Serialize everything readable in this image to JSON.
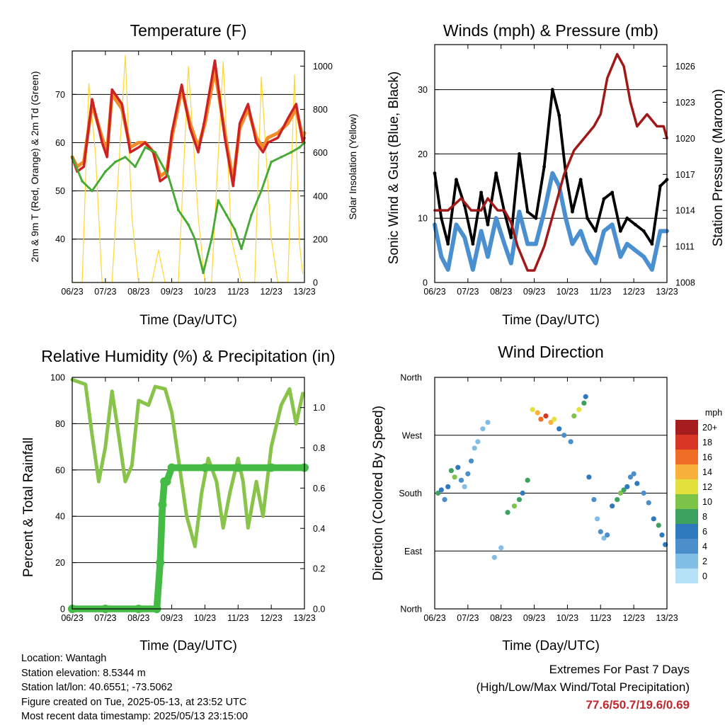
{
  "chart_data": [
    {
      "type": "line",
      "title": "Temperature (F)",
      "xlabel": "Time (Day/UTC)",
      "ylabel": "2m & 9m T (Red, Orange) & 2m Td (Green)",
      "ylabel_right": "Solar Insolation (Yellow)",
      "x_ticks": [
        "06/23",
        "07/23",
        "08/23",
        "09/23",
        "10/23",
        "11/23",
        "12/23",
        "13/23"
      ],
      "ylim": [
        31,
        79
      ],
      "y_ticks": [
        40,
        50,
        60,
        70
      ],
      "ylim_right": [
        0,
        1070
      ],
      "y_ticks_right": [
        0,
        200,
        400,
        600,
        800,
        1000
      ],
      "grid": "horizontal",
      "series": [
        {
          "color": "#cc2222",
          "x": [
            0,
            0.15,
            0.35,
            0.6,
            0.9,
            1.05,
            1.2,
            1.5,
            1.75,
            2.0,
            2.2,
            2.45,
            2.65,
            2.85,
            3.0,
            3.3,
            3.55,
            3.8,
            4.0,
            4.3,
            4.6,
            4.85,
            5.05,
            5.3,
            5.55,
            5.75,
            5.9,
            6.2,
            6.5,
            6.75,
            6.95,
            7.0
          ],
          "values": [
            57,
            54,
            55,
            69,
            60,
            57,
            71,
            68,
            58,
            59,
            60,
            58,
            52,
            53,
            62,
            72,
            63,
            58,
            65,
            77,
            61,
            51,
            64,
            68,
            60,
            58,
            60,
            61,
            65,
            68,
            60,
            61
          ]
        },
        {
          "color": "#f28c28",
          "x": [
            0,
            0.15,
            0.35,
            0.6,
            0.9,
            1.05,
            1.2,
            1.5,
            1.75,
            2.0,
            2.2,
            2.45,
            2.65,
            2.85,
            3.0,
            3.3,
            3.55,
            3.8,
            4.0,
            4.3,
            4.6,
            4.85,
            5.05,
            5.3,
            5.55,
            5.75,
            5.9,
            6.2,
            6.5,
            6.75,
            6.95,
            7.0
          ],
          "values": [
            57,
            55,
            56,
            68,
            61,
            58,
            70,
            67,
            59,
            60,
            60,
            58,
            53,
            54,
            61,
            71,
            64,
            59,
            64,
            75,
            62,
            52,
            63,
            67,
            61,
            59,
            61,
            62,
            64,
            67,
            61,
            62
          ]
        },
        {
          "color": "#44aa33",
          "x": [
            0,
            0.3,
            0.6,
            1.0,
            1.3,
            1.6,
            1.9,
            2.2,
            2.5,
            2.9,
            3.2,
            3.5,
            3.7,
            3.95,
            4.2,
            4.4,
            4.65,
            4.9,
            5.1,
            5.4,
            5.7,
            6.0,
            6.3,
            6.6,
            6.85,
            7.0
          ],
          "values": [
            57,
            52,
            50,
            54,
            56,
            57,
            55,
            59,
            58,
            53,
            46,
            43,
            40,
            33,
            40,
            48,
            45,
            42,
            38,
            45,
            50,
            56,
            57,
            58,
            59,
            60
          ]
        },
        {
          "color": "#ffd633",
          "x": [
            0,
            0.3,
            0.5,
            0.7,
            0.9,
            1.2,
            1.6,
            1.8,
            2.0,
            2.15,
            2.4,
            2.6,
            2.8,
            3.0,
            3.2,
            3.5,
            3.8,
            4.0,
            4.2,
            4.55,
            4.8,
            5.1,
            5.5,
            5.7,
            6.0,
            6.2,
            6.5,
            6.7,
            6.85,
            6.95
          ],
          "values": [
            0,
            0,
            920,
            600,
            0,
            0,
            1050,
            300,
            0,
            0,
            0,
            150,
            0,
            0,
            0,
            1000,
            300,
            0,
            0,
            1020,
            200,
            0,
            0,
            950,
            200,
            0,
            0,
            960,
            180,
            40
          ]
        }
      ]
    },
    {
      "type": "line",
      "title": "Winds (mph) & Pressure (mb)",
      "xlabel": "Time (Day/UTC)",
      "ylabel": "Sonic Wind & Gust (Blue, Black)",
      "ylabel_right": "Station Pressure (Maroon)",
      "x_ticks": [
        "06/23",
        "07/23",
        "08/23",
        "09/23",
        "10/23",
        "11/23",
        "12/23",
        "13/23"
      ],
      "ylim": [
        0,
        37
      ],
      "y_ticks": [
        0,
        10,
        20,
        30
      ],
      "ylim_right": [
        1008,
        1027.8
      ],
      "y_ticks_right": [
        1008,
        1011,
        1014,
        1017,
        1020,
        1023,
        1026
      ],
      "grid": "horizontal",
      "series": [
        {
          "color": "#000000",
          "x": [
            0,
            0.2,
            0.4,
            0.65,
            0.9,
            1.15,
            1.4,
            1.6,
            1.85,
            2.1,
            2.3,
            2.55,
            2.8,
            3.05,
            3.3,
            3.55,
            3.75,
            3.95,
            4.15,
            4.4,
            4.6,
            4.85,
            5.1,
            5.35,
            5.6,
            5.8,
            6.05,
            6.3,
            6.55,
            6.8,
            7.0
          ],
          "values": [
            17,
            10,
            6,
            16,
            12,
            6,
            14,
            9,
            17,
            11,
            7,
            20,
            11,
            10,
            18,
            30,
            26,
            17,
            11,
            16,
            10,
            8,
            13,
            14,
            8,
            10,
            9,
            8,
            6,
            15,
            16
          ]
        },
        {
          "color": "#4a90d0",
          "x": [
            0,
            0.2,
            0.4,
            0.65,
            0.9,
            1.15,
            1.4,
            1.6,
            1.85,
            2.1,
            2.3,
            2.55,
            2.8,
            3.05,
            3.3,
            3.55,
            3.75,
            3.95,
            4.15,
            4.4,
            4.6,
            4.85,
            5.1,
            5.35,
            5.6,
            5.8,
            6.05,
            6.3,
            6.55,
            6.8,
            7.0
          ],
          "values": [
            9,
            4,
            2,
            9,
            7,
            2,
            8,
            4,
            10,
            6,
            3,
            11,
            6,
            6,
            11,
            17,
            15,
            10,
            6,
            8,
            5,
            3,
            8,
            9,
            4,
            6,
            5,
            4,
            2,
            8,
            8
          ]
        },
        {
          "color": "#a01818",
          "x": [
            0,
            0.4,
            0.8,
            1.1,
            1.4,
            1.6,
            1.9,
            2.1,
            2.3,
            2.5,
            2.8,
            3.0,
            3.3,
            3.6,
            3.9,
            4.2,
            4.5,
            4.8,
            5.0,
            5.2,
            5.5,
            5.7,
            5.9,
            6.1,
            6.4,
            6.7,
            6.9,
            7.0
          ],
          "values": [
            1014,
            1014,
            1015,
            1014,
            1014,
            1015,
            1014,
            1014,
            1013,
            1011,
            1009,
            1009,
            1011,
            1014,
            1017,
            1019,
            1020,
            1021,
            1022,
            1025,
            1027,
            1026,
            1023,
            1021,
            1022,
            1021,
            1021,
            1020
          ]
        }
      ]
    },
    {
      "type": "line",
      "title": "Relative Humidity (%) & Precipitation (in)",
      "xlabel": "Time (Day/UTC)",
      "ylabel": "Percent & Total Rainfall",
      "x_ticks": [
        "06/23",
        "07/23",
        "08/23",
        "09/23",
        "10/23",
        "11/23",
        "12/23",
        "13/23"
      ],
      "ylim": [
        0,
        100
      ],
      "y_ticks": [
        0,
        20,
        40,
        60,
        80,
        100
      ],
      "ylim_right": [
        0,
        1.15
      ],
      "y_ticks_right": [
        "0.0",
        "0.2",
        "0.4",
        "0.6",
        "0.8",
        "1.0"
      ],
      "grid": "horizontal",
      "series": [
        {
          "color": "#88c34a",
          "x": [
            0,
            0.4,
            0.6,
            0.8,
            1.0,
            1.2,
            1.35,
            1.6,
            1.8,
            2.0,
            2.3,
            2.5,
            2.8,
            3.0,
            3.2,
            3.45,
            3.7,
            3.9,
            4.1,
            4.35,
            4.55,
            4.75,
            5.0,
            5.15,
            5.3,
            5.55,
            5.75,
            6.0,
            6.3,
            6.55,
            6.75,
            6.95
          ],
          "values": [
            99,
            97,
            75,
            55,
            70,
            94,
            80,
            55,
            62,
            90,
            88,
            96,
            95,
            85,
            65,
            40,
            27,
            50,
            65,
            55,
            35,
            50,
            65,
            55,
            35,
            55,
            40,
            70,
            88,
            95,
            80,
            93
          ]
        },
        {
          "color": "#44bb44",
          "x": [
            0,
            1.0,
            2.0,
            2.55,
            2.65,
            2.72,
            2.78,
            2.85,
            3.0,
            4.0,
            5.0,
            6.0,
            7.0
          ],
          "values": [
            0,
            0,
            0,
            0,
            20,
            45,
            55,
            55,
            61,
            61,
            61,
            61,
            61
          ]
        }
      ]
    },
    {
      "type": "scatter",
      "title": "Wind Direction",
      "xlabel": "Time (Day/UTC)",
      "ylabel": "Direction (Colored By Speed)",
      "x_ticks": [
        "06/23",
        "07/23",
        "08/23",
        "09/23",
        "10/23",
        "11/23",
        "12/23",
        "13/23"
      ],
      "y_ticks": [
        "North",
        "East",
        "South",
        "West",
        "North"
      ],
      "ylim": [
        0,
        360
      ],
      "grid": "horizontal",
      "legend": {
        "title": "mph",
        "position": "right",
        "labels": [
          "0",
          "2",
          "4",
          "6",
          "8",
          "10",
          "12",
          "14",
          "16",
          "18",
          "20+"
        ],
        "colors": [
          "#b5e2f7",
          "#82bde6",
          "#4a8fcb",
          "#2f7abf",
          "#3da260",
          "#7cc447",
          "#e4e13c",
          "#f8b13a",
          "#f06d26",
          "#d93524",
          "#a51d1d"
        ]
      },
      "points": [
        [
          0.1,
          180
        ],
        [
          0.2,
          185
        ],
        [
          0.3,
          170
        ],
        [
          0.4,
          190
        ],
        [
          0.5,
          215
        ],
        [
          0.6,
          205
        ],
        [
          0.7,
          220
        ],
        [
          0.8,
          200
        ],
        [
          0.9,
          190
        ],
        [
          1.0,
          210
        ],
        [
          1.1,
          230
        ],
        [
          1.2,
          250
        ],
        [
          1.3,
          260
        ],
        [
          1.45,
          280
        ],
        [
          1.6,
          290
        ],
        [
          1.8,
          80
        ],
        [
          2.0,
          95
        ],
        [
          2.2,
          150
        ],
        [
          2.4,
          160
        ],
        [
          2.55,
          170
        ],
        [
          2.65,
          180
        ],
        [
          2.8,
          200
        ],
        [
          2.95,
          310
        ],
        [
          3.1,
          305
        ],
        [
          3.2,
          295
        ],
        [
          3.35,
          300
        ],
        [
          3.5,
          290
        ],
        [
          3.6,
          295
        ],
        [
          3.75,
          280
        ],
        [
          3.9,
          270
        ],
        [
          4.1,
          260
        ],
        [
          4.2,
          300
        ],
        [
          4.35,
          310
        ],
        [
          4.5,
          320
        ],
        [
          4.55,
          330
        ],
        [
          4.65,
          205
        ],
        [
          4.8,
          170
        ],
        [
          4.9,
          140
        ],
        [
          5.0,
          120
        ],
        [
          5.1,
          110
        ],
        [
          5.2,
          115
        ],
        [
          5.35,
          160
        ],
        [
          5.5,
          170
        ],
        [
          5.6,
          180
        ],
        [
          5.7,
          185
        ],
        [
          5.8,
          190
        ],
        [
          5.9,
          205
        ],
        [
          6.0,
          210
        ],
        [
          6.1,
          195
        ],
        [
          6.3,
          180
        ],
        [
          6.45,
          165
        ],
        [
          6.6,
          140
        ],
        [
          6.75,
          130
        ],
        [
          6.85,
          115
        ],
        [
          6.95,
          100
        ]
      ],
      "point_speeds": [
        8,
        6,
        4,
        6,
        8,
        10,
        6,
        4,
        2,
        4,
        4,
        2,
        2,
        2,
        2,
        2,
        2,
        8,
        10,
        8,
        6,
        8,
        12,
        14,
        16,
        18,
        14,
        12,
        6,
        4,
        4,
        10,
        12,
        8,
        6,
        6,
        4,
        2,
        4,
        2,
        4,
        6,
        8,
        10,
        8,
        6,
        4,
        4,
        6,
        4,
        4,
        6,
        8,
        6,
        6
      ]
    }
  ],
  "info": {
    "location": "Location: Wantagh",
    "elevation": "Station elevation: 8.5344 m",
    "latlon": "Station lat/lon: 40.6551; -73.5062",
    "created": "Figure created on Tue, 2025-05-13, at 23:52 UTC",
    "recent": "Most recent data timestamp: 2025/05/13 23:15:00"
  },
  "extremes": {
    "line1": "Extremes For Past 7 Days",
    "line2": "(High/Low/Max Wind/Total Precipitation)",
    "values": "77.6/50.7/19.6/0.69"
  }
}
